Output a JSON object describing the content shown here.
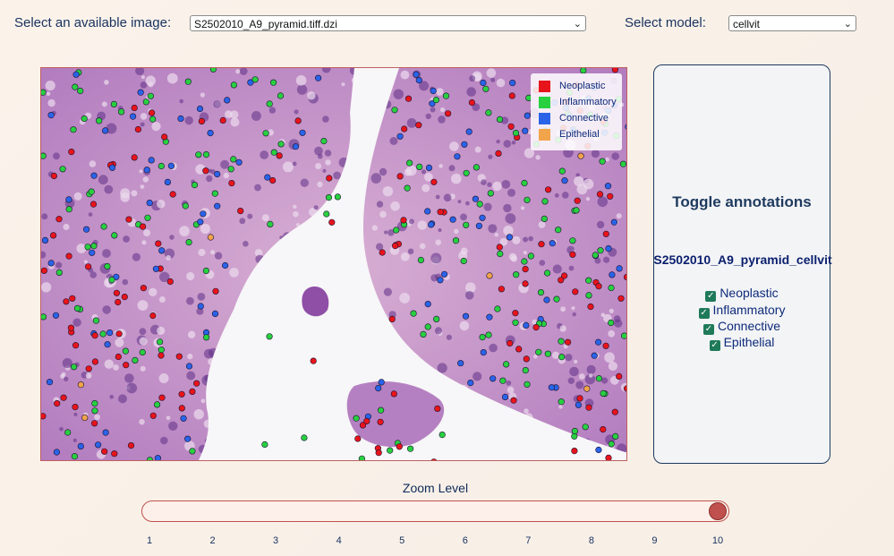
{
  "header": {
    "image_label": "Select an available image:",
    "image_selected": "S2502010_A9_pyramid.tiff.dzi",
    "model_label": "Select model:",
    "model_selected": "cellvit"
  },
  "legend": [
    {
      "label": "Neoplastic",
      "color": "#e8141b"
    },
    {
      "label": "Inflammatory",
      "color": "#28d040"
    },
    {
      "label": "Connective",
      "color": "#2a63e8"
    },
    {
      "label": "Epithelial",
      "color": "#f2a44a"
    }
  ],
  "panel": {
    "title": "Toggle annotations",
    "subtitle": "S2502010_A9_pyramid_cellvit",
    "toggles": [
      {
        "label": "Neoplastic",
        "checked": true
      },
      {
        "label": "Inflammatory",
        "checked": true
      },
      {
        "label": "Connective",
        "checked": true
      },
      {
        "label": "Epithelial",
        "checked": true
      }
    ]
  },
  "zoom": {
    "label": "Zoom Level",
    "value": 10,
    "min": 1,
    "max": 10,
    "ticks": [
      "1",
      "2",
      "3",
      "4",
      "5",
      "6",
      "7",
      "8",
      "9",
      "10"
    ]
  }
}
